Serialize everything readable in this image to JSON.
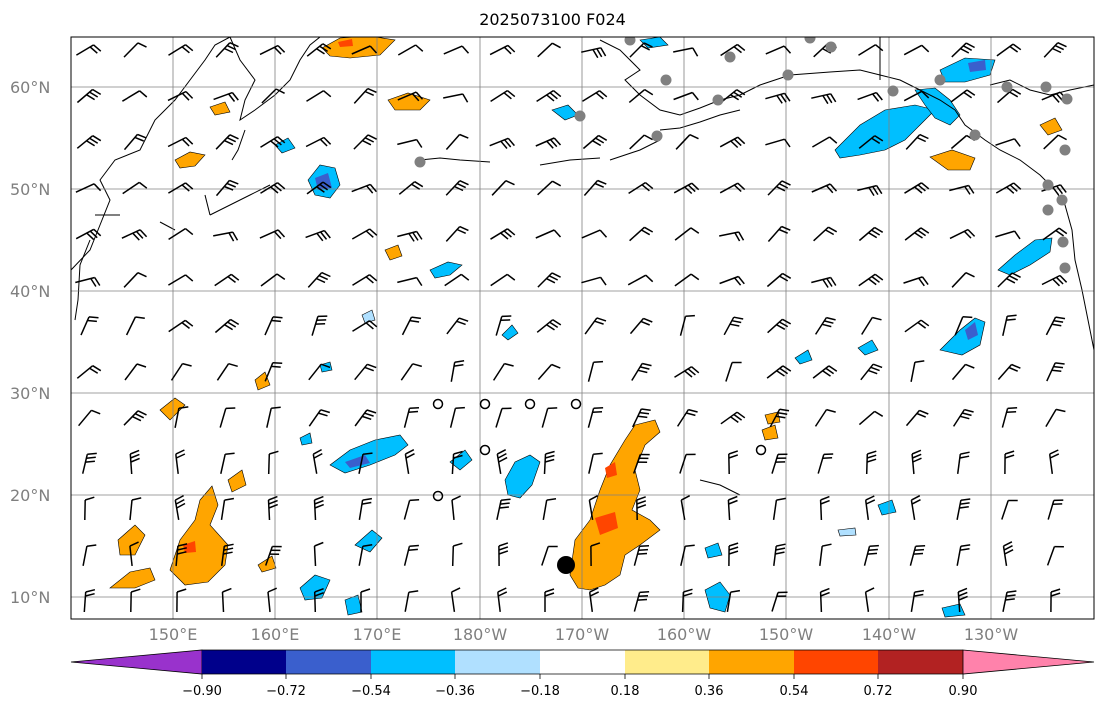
{
  "title": "2025073100 F024",
  "latitude_labels": [
    "60°N",
    "50°N",
    "40°N",
    "30°N",
    "20°N",
    "10°N"
  ],
  "longitude_labels": [
    "150°E",
    "160°E",
    "170°E",
    "180°W",
    "170°W",
    "160°W",
    "150°W",
    "140°W",
    "130°W"
  ],
  "colorbar": {
    "tick_labels": [
      "−0.90",
      "−0.72",
      "−0.54",
      "−0.36",
      "−0.18",
      "0.18",
      "0.36",
      "0.54",
      "0.72",
      "0.90"
    ],
    "colors": [
      "#9932cc",
      "#00008b",
      "#3a5fcd",
      "#00bfff",
      "#b0e0ff",
      "#ffffff",
      "#ffec8b",
      "#ffa500",
      "#ff4500",
      "#b22222",
      "#ff82ab"
    ]
  },
  "field_colors": {
    "pos_light": "#ffec8b",
    "pos_mid": "#ffa500",
    "pos_strong": "#ff4500",
    "neg_light": "#b0e0ff",
    "neg_mid": "#00bfff",
    "neg_strong": "#3a5fcd",
    "station": "#808080",
    "storm": "#000000"
  }
}
